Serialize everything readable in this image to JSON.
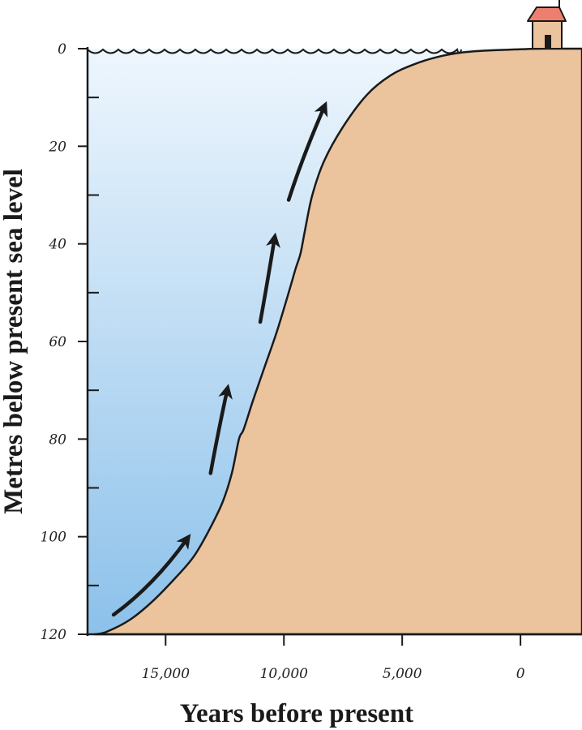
{
  "chart_data": {
    "type": "area",
    "title": "",
    "xlabel": "Years before present",
    "ylabel": "Metres below present sea level",
    "x_reversed": true,
    "xlim": [
      18300,
      -2600
    ],
    "ylim": [
      0,
      120
    ],
    "x_ticks": [
      15000,
      10000,
      5000,
      0
    ],
    "x_tick_labels": [
      "15,000",
      "10,000",
      "5,000",
      "0"
    ],
    "y_ticks": [
      0,
      20,
      40,
      60,
      80,
      100,
      120
    ],
    "y_tick_labels": [
      "0",
      "20",
      "40",
      "60",
      "80",
      "100",
      "120"
    ],
    "grid": false,
    "series": [
      {
        "x": [
          18000,
          17500,
          16500,
          15500,
          14500,
          13800,
          13200,
          12600,
          12200,
          11900,
          11700,
          11300,
          10800,
          10300,
          9800,
          9500,
          9300,
          9100,
          8800,
          8300,
          7500,
          6500,
          5500,
          4500,
          3500,
          2500,
          1500,
          500,
          -100,
          -400,
          -1000,
          -1800,
          -2600
        ],
        "values": [
          120,
          119.5,
          117,
          113,
          108,
          104,
          99,
          93,
          87,
          80,
          78,
          72,
          65,
          58,
          50,
          45,
          42,
          37,
          30,
          23,
          16,
          9.5,
          5.5,
          3.2,
          1.7,
          0.8,
          0.4,
          0.2,
          0.1,
          0.05,
          0,
          0,
          0
        ]
      }
    ],
    "arrows": [
      {
        "x": [
          17200,
          15500,
          14100
        ],
        "values": [
          116,
          110,
          100.5
        ]
      },
      {
        "x": [
          13100,
          12800,
          12400
        ],
        "values": [
          87,
          79,
          70
        ]
      },
      {
        "x": [
          11000,
          10700,
          10400
        ],
        "values": [
          56,
          48,
          39
        ]
      },
      {
        "x": [
          9800,
          9200,
          8300
        ],
        "values": [
          31,
          22,
          12
        ]
      }
    ],
    "colors": {
      "land": "#EBC39D",
      "water_top": "#EEF6FD",
      "water_bottom": "#8CC1EA",
      "roof": "#EE7F6E",
      "house": "#EBC39D",
      "line": "#1a1a1a"
    },
    "icons": [
      "house-icon",
      "wave-line"
    ]
  }
}
